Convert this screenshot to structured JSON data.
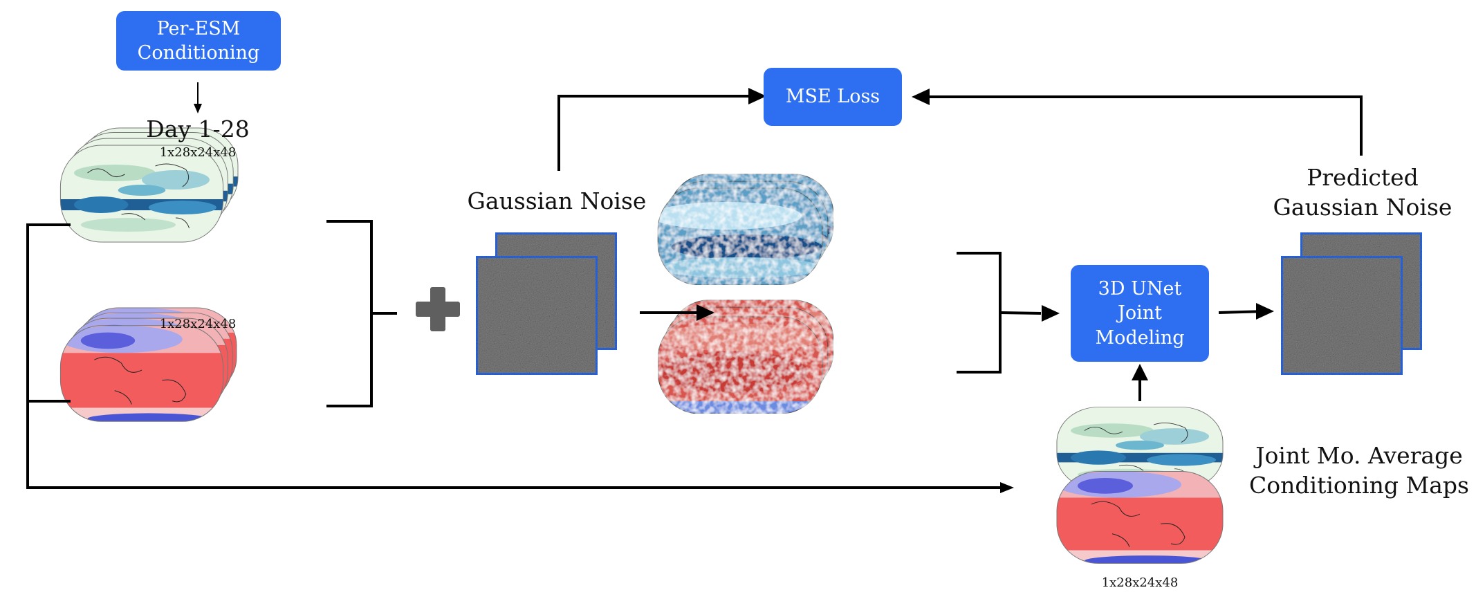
{
  "boxes": {
    "per_esm": "Per-ESM\nConditioning",
    "mse_loss": "MSE Loss",
    "unet": "3D UNet\nJoint\nModeling"
  },
  "labels": {
    "day_range": "Day 1-28",
    "shape_precip_input": "1x28x24x48",
    "shape_temp_input": "1x28x24x48",
    "gaussian_noise": "Gaussian Noise",
    "predicted_noise": "Predicted\nGaussian Noise",
    "joint_conditioning": "Joint Mo. Average\nConditioning Maps",
    "shape_conditioning": "1x28x24x48"
  },
  "colors": {
    "accent_blue": "#2e6ef0",
    "noise_gray": "#808080",
    "precip_green": "#d4ecd6",
    "precip_blue": "#1f5f96",
    "temp_red": "#f06262",
    "temp_blue": "#4a55d6"
  }
}
